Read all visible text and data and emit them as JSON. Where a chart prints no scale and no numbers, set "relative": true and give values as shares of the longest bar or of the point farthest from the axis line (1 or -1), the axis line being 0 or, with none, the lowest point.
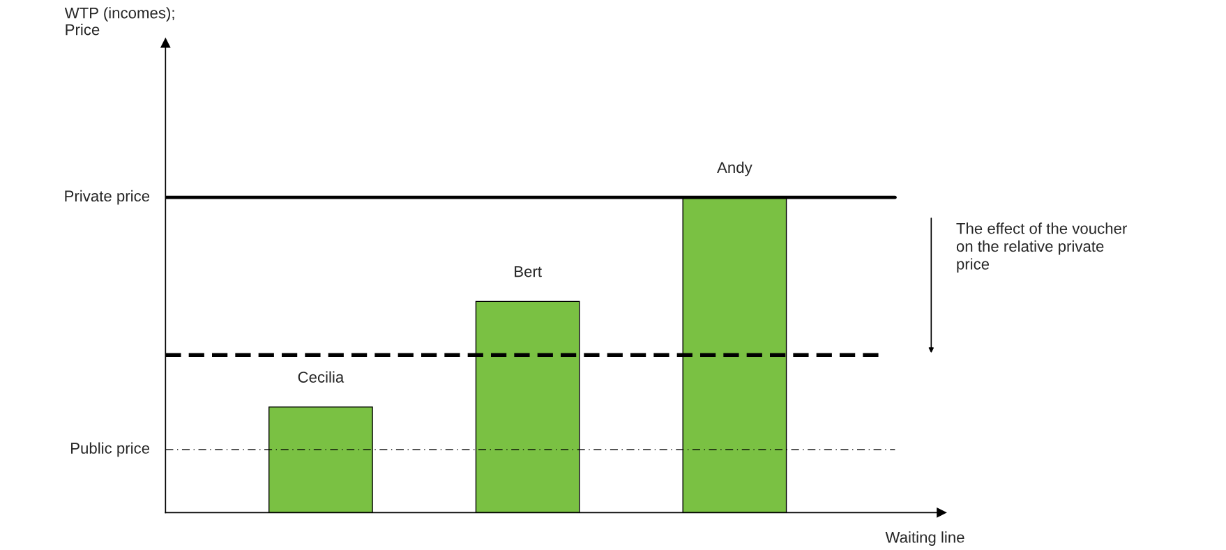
{
  "chart_data": {
    "type": "bar",
    "relative": true,
    "categories": [
      "Cecilia",
      "Bert",
      "Andy"
    ],
    "values": [
      0.335,
      0.67,
      1
    ],
    "color": "#7ac143",
    "xlabel": "Waiting line",
    "ref_lines": [
      {
        "axis": "y",
        "value": 1,
        "label": "Private price",
        "line_style": "solid"
      },
      {
        "axis": "y",
        "value": 0.5,
        "label": null,
        "line_style": "dashed"
      },
      {
        "axis": "y",
        "value": 0.2,
        "label": "Public price",
        "line_style": "dashdot"
      }
    ],
    "annotations": [
      "WTP (incomes);\nPrice",
      "The effect of the voucher\non the relative private\nprice"
    ],
    "legend": false
  }
}
